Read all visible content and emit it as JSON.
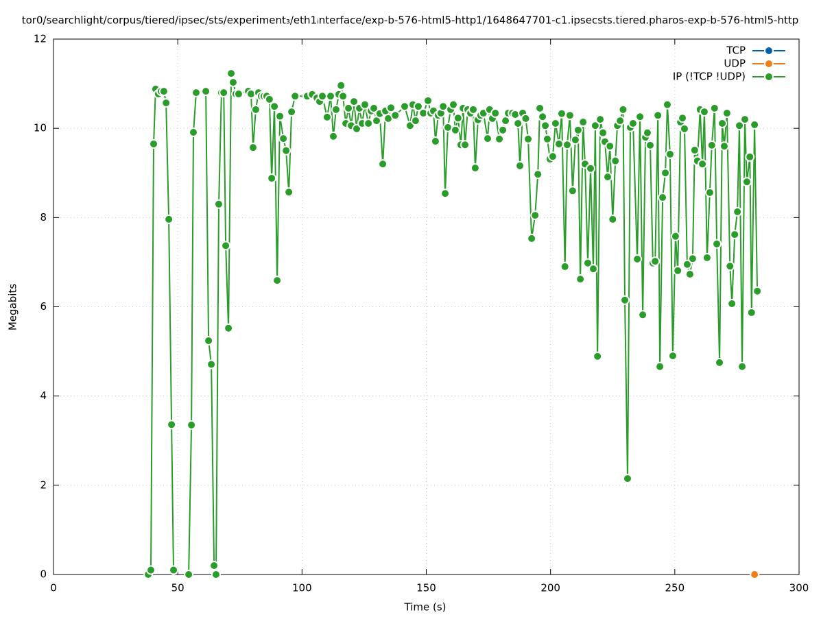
{
  "chart_data": {
    "type": "line",
    "title": "tor0/searchlight/corpus/tiered/ipsec/sts/experiment₃/eth1ᵢnterface/exp-b-576-html5-http1/1648647701-c1.ipsecsts.tiered.pharos-exp-b-576-html5-http",
    "x_label": "Time (s)",
    "y_label": "Megabits",
    "xlim": [
      0,
      300
    ],
    "xticks": [
      0,
      50,
      100,
      150,
      200,
      250,
      300
    ],
    "ylim": [
      0,
      12
    ],
    "yticks": [
      0,
      2,
      4,
      6,
      8,
      10,
      12
    ],
    "grid": true,
    "legend": "top-right",
    "series": [
      {
        "name": "TCP",
        "color": "#0060ad",
        "x": [],
        "values": []
      },
      {
        "name": "UDP",
        "color": "#ef7f17",
        "x": [
          282.1
        ],
        "values": [
          0
        ]
      },
      {
        "name": "IP (!TCP  !UDP)",
        "color": "#2a9c2a",
        "x": [
          38.1,
          39.2,
          40.3,
          41.1,
          42.2,
          43.3,
          44.4,
          45.3,
          46.4,
          47.5,
          48.3,
          null,
          54.4,
          55.5,
          56.3,
          57.4,
          61.3,
          62.4,
          63.5,
          64.6,
          65.4,
          66.5,
          67.6,
          68.5,
          69.3,
          70.4,
          71.5,
          72.3,
          73.4,
          74.5,
          78.4,
          79.5,
          80.3,
          81.4,
          82.5,
          83.6,
          84.7,
          85.8,
          86.9,
          87.8,
          88.9,
          90.0,
          91.1,
          92.5,
          93.6,
          94.7,
          95.8,
          97.2,
          102.1,
          104.1,
          106.0,
          107.1,
          108.2,
          110.1,
          111.5,
          112.6,
          113.7,
          114.8,
          115.7,
          116.5,
          117.6,
          118.7,
          119.8,
          120.9,
          122.0,
          123.1,
          124.2,
          125.3,
          126.7,
          127.8,
          128.9,
          130.0,
          131.3,
          132.5,
          133.6,
          134.7,
          135.8,
          137.5,
          141.3,
          143.5,
          144.6,
          145.7,
          146.8,
          148.8,
          150.7,
          151.8,
          152.9,
          153.7,
          154.8,
          155.9,
          156.8,
          157.6,
          158.7,
          159.8,
          160.9,
          161.7,
          162.8,
          163.9,
          164.8,
          165.6,
          166.7,
          167.8,
          168.9,
          169.7,
          170.8,
          171.9,
          173.0,
          174.7,
          175.5,
          176.6,
          177.8,
          179.4,
          180.8,
          181.9,
          183.0,
          184.7,
          185.8,
          186.9,
          187.7,
          188.8,
          190.0,
          191.0,
          192.4,
          193.8,
          194.9,
          195.7,
          196.8,
          197.9,
          198.7,
          199.8,
          200.9,
          202.0,
          203.4,
          204.5,
          205.8,
          206.7,
          207.8,
          208.9,
          210.0,
          211.1,
          212.0,
          213.1,
          213.9,
          215.0,
          216.1,
          217.2,
          218.0,
          218.9,
          220.0,
          221.1,
          221.9,
          223.0,
          223.9,
          225.0,
          226.1,
          226.9,
          228.0,
          229.2,
          229.9,
          231.0,
          232.1,
          233.2,
          234.9,
          236.0,
          237.1,
          238.2,
          239.0,
          240.1,
          241.2,
          242.1,
          243.2,
          244.0,
          245.1,
          246.2,
          247.0,
          248.1,
          249.2,
          250.3,
          251.2,
          252.3,
          253.1,
          253.9,
          255.0,
          256.1,
          257.2,
          258.0,
          259.1,
          260.2,
          261.1,
          261.9,
          263.0,
          264.1,
          264.9,
          266.0,
          266.9,
          268.0,
          269.1,
          269.9,
          271.0,
          272.2,
          273.0,
          274.1,
          275.2,
          276.0,
          277.1,
          278.2,
          279.0,
          280.2,
          280.9,
          282.1,
          283.2
        ],
        "values": [
          0,
          0.1,
          9.65,
          10.88,
          10.77,
          10.83,
          10.83,
          10.57,
          7.96,
          3.36,
          0.1,
          null,
          0,
          3.35,
          9.91,
          10.8,
          10.83,
          5.24,
          4.71,
          0.2,
          0,
          8.3,
          10.8,
          10.8,
          7.37,
          5.52,
          11.23,
          11.03,
          10.77,
          10.77,
          10.83,
          10.77,
          9.57,
          10.42,
          10.8,
          10.72,
          10.72,
          10.72,
          10.65,
          8.88,
          10.49,
          6.59,
          10.27,
          9.77,
          9.5,
          8.57,
          10.37,
          10.72,
          10.72,
          10.76,
          10.68,
          10.6,
          10.72,
          10.25,
          10.72,
          9.82,
          10.42,
          10.76,
          10.96,
          10.72,
          10.11,
          10.45,
          10.06,
          10.6,
          9.99,
          10.45,
          10.11,
          10.53,
          10.11,
          10.39,
          10.45,
          10.17,
          10.33,
          9.2,
          10.39,
          10.22,
          10.46,
          10.29,
          10.49,
          10.06,
          10.53,
          10.17,
          10.49,
          10.34,
          10.62,
          10.34,
          10.39,
          9.71,
          10.29,
          10.34,
          10.49,
          8.54,
          10.02,
          10.42,
          10.53,
          9.96,
          10.23,
          9.63,
          10.45,
          9.63,
          10.42,
          10.34,
          10.42,
          9.11,
          10.19,
          10.29,
          10.34,
          9.77,
          10.42,
          10.22,
          10.34,
          9.76,
          9.96,
          10.17,
          10.34,
          10.34,
          10.31,
          10.11,
          9.16,
          10.34,
          10.22,
          9.76,
          7.53,
          8.05,
          8.97,
          10.45,
          10.26,
          10.06,
          9.76,
          9.31,
          9.37,
          10.11,
          9.65,
          10.33,
          6.9,
          9.63,
          10.29,
          8.6,
          9.74,
          9.96,
          6.62,
          10.14,
          9.2,
          6.98,
          9.1,
          6.85,
          10.06,
          4.89,
          10.2,
          9.9,
          9.7,
          8.91,
          9.6,
          7.96,
          9.27,
          10.06,
          10.17,
          10.42,
          6.15,
          2.15,
          10.02,
          10.11,
          7.07,
          10.26,
          5.82,
          9.8,
          9.9,
          9.62,
          6.98,
          7.02,
          10.29,
          4.66,
          8.45,
          9.0,
          10.53,
          9.42,
          4.9,
          7.58,
          6.81,
          10.14,
          10.23,
          9.99,
          6.95,
          6.73,
          7.08,
          9.51,
          9.27,
          10.42,
          9.2,
          10.37,
          7.1,
          8.56,
          9.62,
          10.45,
          7.41,
          4.75,
          10.11,
          9.6,
          10.34,
          6.91,
          6.07,
          7.62,
          8.13,
          10.06,
          4.66,
          10.2,
          8.8,
          9.36,
          5.87,
          10.08,
          6.35
        ]
      }
    ]
  }
}
